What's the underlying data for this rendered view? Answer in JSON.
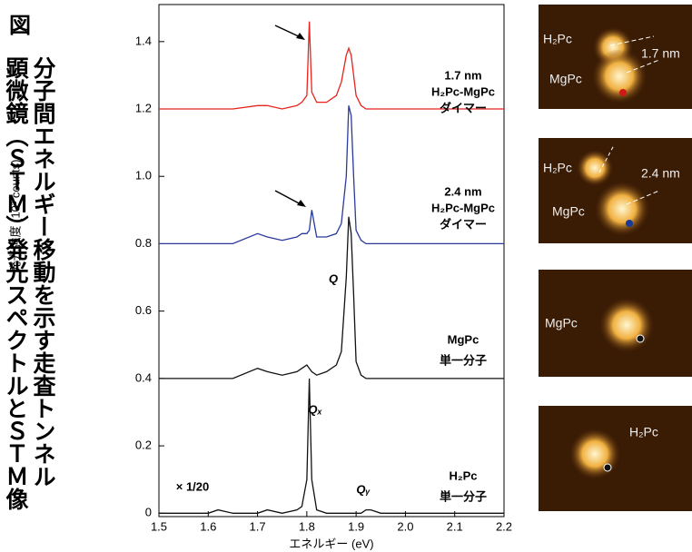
{
  "figure_label": "図",
  "title_lines": [
    "分子間エネルギー移動を示す走査トンネル",
    "顕微鏡（ＳＴＭ）発光スペクトルとＳＴＭ像"
  ],
  "chart_data": {
    "type": "line",
    "xlabel": "エネルギー (eV)",
    "ylabel": "発光強度 (10³ counts)",
    "xlim": [
      1.5,
      2.2
    ],
    "ylim": [
      -0.01,
      1.51
    ],
    "xticks": [
      1.5,
      1.6,
      1.7,
      1.8,
      1.9,
      {
        "value": 2,
        "label": "2.0"
      },
      2.1,
      2.2
    ],
    "yticks": [
      0,
      0.2,
      0.4,
      0.6,
      0.8,
      {
        "value": 1,
        "label": "1.0"
      },
      1.2,
      1.4
    ],
    "x": [
      1.5,
      1.55,
      1.6,
      1.62,
      1.65,
      1.7,
      1.72,
      1.75,
      1.78,
      1.79,
      1.8,
      1.805,
      1.81,
      1.82,
      1.84,
      1.86,
      1.87,
      1.88,
      1.885,
      1.89,
      1.895,
      1.9,
      1.91,
      1.92,
      1.93,
      1.95,
      2.0,
      2.05,
      2.1,
      2.15,
      2.2
    ],
    "series": [
      {
        "color": "#e8231b",
        "labels": [
          "1.7 nm",
          "H₂Pc-MgPc",
          "ダイマー"
        ],
        "values": [
          1.2,
          1.2,
          1.2,
          1.2,
          1.2,
          1.21,
          1.21,
          1.2,
          1.21,
          1.22,
          1.24,
          1.46,
          1.25,
          1.22,
          1.22,
          1.24,
          1.28,
          1.36,
          1.38,
          1.36,
          1.3,
          1.24,
          1.21,
          1.2,
          1.2,
          1.2,
          1.2,
          1.2,
          1.2,
          1.2,
          1.2
        ]
      },
      {
        "color": "#2a3a9a",
        "labels": [
          "2.4 nm",
          "H₂Pc-MgPc",
          "ダイマー"
        ],
        "values": [
          0.8,
          0.8,
          0.8,
          0.8,
          0.8,
          0.83,
          0.82,
          0.81,
          0.82,
          0.83,
          0.83,
          0.84,
          0.9,
          0.82,
          0.82,
          0.83,
          0.86,
          1.0,
          1.21,
          1.18,
          1.0,
          0.84,
          0.81,
          0.8,
          0.8,
          0.8,
          0.8,
          0.8,
          0.8,
          0.8,
          0.8
        ]
      },
      {
        "color": "#111111",
        "labels": [
          "MgPc",
          "単一分子"
        ],
        "values": [
          0.4,
          0.4,
          0.4,
          0.4,
          0.4,
          0.43,
          0.42,
          0.41,
          0.42,
          0.43,
          0.44,
          0.43,
          0.42,
          0.41,
          0.42,
          0.44,
          0.48,
          0.7,
          0.88,
          0.83,
          0.65,
          0.45,
          0.41,
          0.4,
          0.4,
          0.4,
          0.4,
          0.4,
          0.4,
          0.4,
          0.4
        ]
      },
      {
        "color": "#111111",
        "labels": [
          "H₂Pc",
          "単一分子"
        ],
        "values": [
          0,
          0,
          0,
          0.01,
          0,
          0,
          0.01,
          0,
          0.01,
          0.02,
          0.1,
          0.4,
          0.1,
          0.01,
          0,
          0,
          0,
          0,
          0,
          0,
          0,
          0,
          0,
          0.01,
          0.01,
          0,
          0,
          0,
          0,
          0,
          0
        ]
      }
    ],
    "annotations": [
      "Q",
      "Qₓ",
      "Qᵧ",
      "× 1/20"
    ]
  },
  "images": [
    {
      "labels": [
        "H₂Pc",
        "1.7 nm",
        "MgPc"
      ]
    },
    {
      "labels": [
        "H₂Pc",
        "2.4 nm",
        "MgPc"
      ]
    },
    {
      "labels": [
        "MgPc"
      ]
    },
    {
      "labels": [
        "H₂Pc"
      ]
    }
  ]
}
